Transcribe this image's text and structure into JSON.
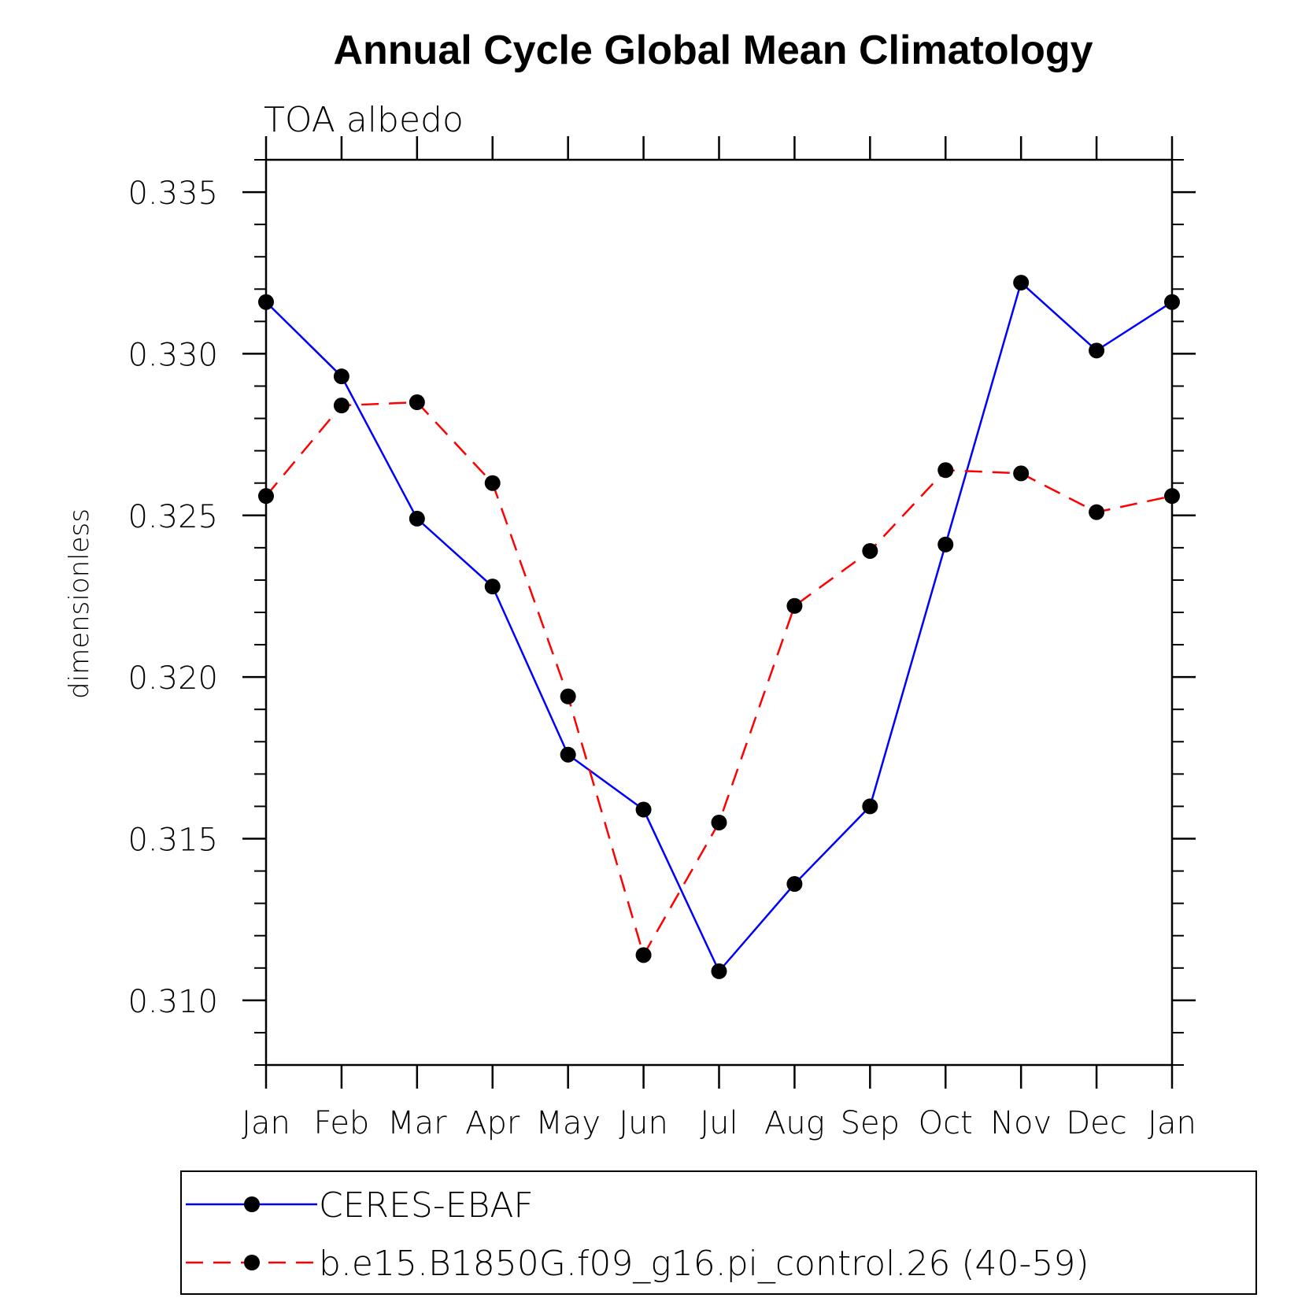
{
  "chart_data": {
    "type": "line",
    "title": "Annual Cycle Global Mean Climatology",
    "subtitle": "TOA albedo",
    "ylabel": "dimensionless",
    "xlabel": "",
    "categories": [
      "Jan",
      "Feb",
      "Mar",
      "Apr",
      "May",
      "Jun",
      "Jul",
      "Aug",
      "Sep",
      "Oct",
      "Nov",
      "Dec",
      "Jan"
    ],
    "ylim": [
      0.308,
      0.336
    ],
    "yticks": [
      0.31,
      0.315,
      0.32,
      0.325,
      0.33,
      0.335
    ],
    "ytick_labels": [
      "0.310",
      "0.315",
      "0.320",
      "0.325",
      "0.330",
      "0.335"
    ],
    "y_minor_step": 0.001,
    "grid": false,
    "legend_position": "bottom",
    "series": [
      {
        "name": "CERES-EBAF",
        "color": "#0000ff",
        "dash": "solid",
        "marker": "filled-circle",
        "values": [
          0.3316,
          0.3293,
          0.3249,
          0.3228,
          0.3176,
          0.3159,
          0.3109,
          0.3136,
          0.316,
          0.3241,
          0.3322,
          0.3301,
          0.3316
        ]
      },
      {
        "name": "b.e15.B1850G.f09_g16.pi_control.26 (40-59)",
        "color": "#ff0000",
        "dash": "dashed",
        "marker": "filled-circle",
        "values": [
          0.3256,
          0.3284,
          0.3285,
          0.326,
          0.3194,
          0.3114,
          0.3155,
          0.3222,
          0.3239,
          0.3264,
          0.3263,
          0.3251,
          0.3256
        ]
      }
    ]
  }
}
